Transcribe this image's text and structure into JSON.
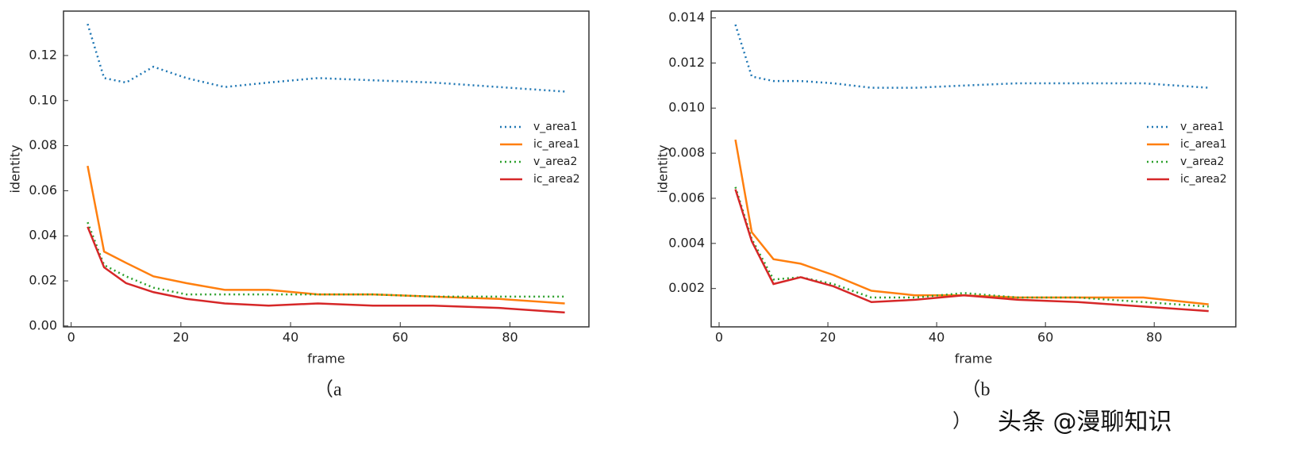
{
  "chart_data": [
    {
      "type": "line",
      "caption": "（a",
      "xlabel": "frame",
      "ylabel": "identity",
      "x": [
        3,
        6,
        10,
        15,
        21,
        28,
        36,
        45,
        55,
        66,
        78,
        90
      ],
      "xlim": [
        -1.4,
        94.4
      ],
      "ylim": [
        -0.0004,
        0.1397
      ],
      "xticks": [
        0,
        20,
        40,
        60,
        80
      ],
      "yticks": [
        {
          "value": 0,
          "label": "0.00"
        },
        {
          "value": 0.02,
          "label": "0.02"
        },
        {
          "value": 0.04,
          "label": "0.04"
        },
        {
          "value": 0.06,
          "label": "0.06"
        },
        {
          "value": 0.08,
          "label": "0.08"
        },
        {
          "value": 0.1,
          "label": "0.10"
        },
        {
          "value": 0.12,
          "label": "0.12"
        }
      ],
      "legend": "center right",
      "series": [
        {
          "name": "v_area1",
          "color": "#1f77b4",
          "style": "dotted",
          "values": [
            0.134,
            0.11,
            0.108,
            0.115,
            0.11,
            0.106,
            0.108,
            0.11,
            0.109,
            0.108,
            0.106,
            0.104
          ]
        },
        {
          "name": "ic_area1",
          "color": "#ff7f0e",
          "style": "solid",
          "values": [
            0.071,
            0.033,
            0.028,
            0.022,
            0.019,
            0.016,
            0.016,
            0.014,
            0.014,
            0.013,
            0.012,
            0.01
          ]
        },
        {
          "name": "v_area2",
          "color": "#2ca02c",
          "style": "dotted",
          "values": [
            0.046,
            0.027,
            0.022,
            0.017,
            0.014,
            0.014,
            0.014,
            0.014,
            0.014,
            0.013,
            0.013,
            0.013
          ]
        },
        {
          "name": "ic_area2",
          "color": "#d62728",
          "style": "solid",
          "values": [
            0.044,
            0.026,
            0.019,
            0.015,
            0.012,
            0.01,
            0.009,
            0.01,
            0.009,
            0.009,
            0.008,
            0.006
          ]
        }
      ]
    },
    {
      "type": "line",
      "caption": "（b",
      "xlabel": "frame",
      "ylabel": "identity",
      "x": [
        3,
        6,
        10,
        15,
        21,
        28,
        36,
        45,
        55,
        66,
        78,
        90
      ],
      "xlim": [
        -1.46,
        95
      ],
      "ylim": [
        0.0003,
        0.0143
      ],
      "xticks": [
        0,
        20,
        40,
        60,
        80
      ],
      "yticks": [
        {
          "value": 0.002,
          "label": "0.002"
        },
        {
          "value": 0.004,
          "label": "0.004"
        },
        {
          "value": 0.006,
          "label": "0.006"
        },
        {
          "value": 0.008,
          "label": "0.008"
        },
        {
          "value": 0.01,
          "label": "0.010"
        },
        {
          "value": 0.012,
          "label": "0.012"
        },
        {
          "value": 0.014,
          "label": "0.014"
        }
      ],
      "legend": "center right",
      "series": [
        {
          "name": "v_area1",
          "color": "#1f77b4",
          "style": "dotted",
          "values": [
            0.0137,
            0.0114,
            0.0112,
            0.0112,
            0.0111,
            0.0109,
            0.0109,
            0.011,
            0.0111,
            0.0111,
            0.0111,
            0.0109
          ]
        },
        {
          "name": "ic_area1",
          "color": "#ff7f0e",
          "style": "solid",
          "values": [
            0.0086,
            0.0045,
            0.0033,
            0.0031,
            0.0026,
            0.0019,
            0.0017,
            0.0017,
            0.0016,
            0.0016,
            0.0016,
            0.0013
          ]
        },
        {
          "name": "v_area2",
          "color": "#2ca02c",
          "style": "dotted",
          "values": [
            0.0065,
            0.0042,
            0.0024,
            0.0025,
            0.0022,
            0.0016,
            0.0016,
            0.0018,
            0.0016,
            0.0016,
            0.0014,
            0.0012
          ]
        },
        {
          "name": "ic_area2",
          "color": "#d62728",
          "style": "solid",
          "values": [
            0.0064,
            0.0041,
            0.0022,
            0.0025,
            0.0021,
            0.0014,
            0.0015,
            0.0017,
            0.0015,
            0.0014,
            0.0012,
            0.001
          ]
        }
      ]
    }
  ],
  "caption_tail": "）",
  "watermark": "头条 @漫聊知识"
}
